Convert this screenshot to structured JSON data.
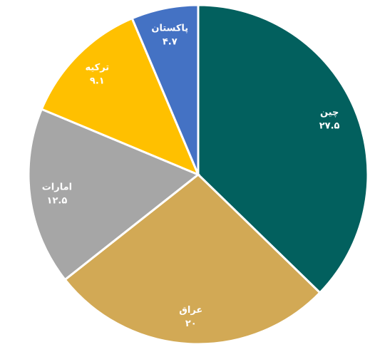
{
  "chart_data": {
    "type": "pie",
    "categories": [
      "چین",
      "عراق",
      "امارات",
      "ترکیه",
      "پاکستان"
    ],
    "values": [
      27.5,
      20,
      12.5,
      9.1,
      4.7
    ],
    "value_labels": [
      "۲۷.۵",
      "۲۰",
      "۱۲.۵",
      "۹.۱",
      "۴.۷"
    ],
    "colors": [
      "#02605e",
      "#d2a955",
      "#a6a6a6",
      "#ffc000",
      "#4472c4"
    ]
  }
}
